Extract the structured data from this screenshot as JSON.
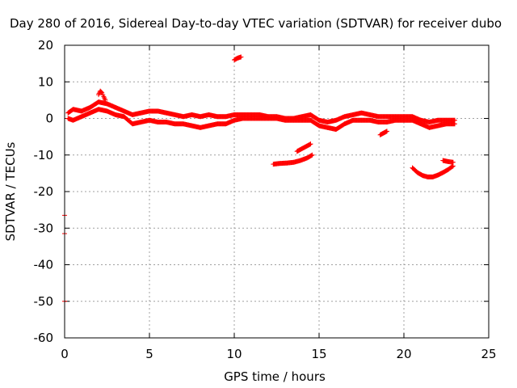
{
  "chart_data": {
    "type": "scatter",
    "title": "Day 280 of 2016, Sidereal Day-to-day VTEC variation (SDTVAR) for receiver dubo",
    "xlabel": "GPS time / hours",
    "ylabel": "SDTVAR / TECUs",
    "xlim": [
      0,
      25
    ],
    "ylim": [
      -60,
      20
    ],
    "xticks": [
      0,
      5,
      10,
      15,
      20,
      25
    ],
    "yticks": [
      -60,
      -50,
      -40,
      -30,
      -20,
      -10,
      0,
      10,
      20
    ],
    "grid": true,
    "grid_style": "dotted",
    "series": [
      {
        "name": "SDTVAR",
        "color": "#ff0000",
        "marker": "plus",
        "segments": [
          {
            "name": "main-band-upper",
            "x": [
              0.2,
              0.5,
              1.0,
              1.5,
              2.0,
              2.5,
              3.0,
              3.5,
              4.0,
              4.5,
              5.0,
              5.5,
              6.0,
              6.5,
              7.0,
              7.5,
              8.0,
              8.5,
              9.0,
              9.5,
              10.0,
              10.5,
              11.0,
              11.5,
              12.0,
              12.5,
              13.0,
              13.5,
              14.0,
              14.5,
              15.0,
              15.5,
              16.0,
              16.5,
              17.0,
              17.5,
              18.0,
              18.5,
              19.0,
              19.5,
              20.0,
              20.5,
              21.0,
              21.5,
              22.0,
              22.5,
              23.0
            ],
            "y": [
              1.5,
              2.5,
              2.0,
              3.0,
              4.5,
              4.0,
              3.0,
              2.0,
              1.0,
              1.5,
              2.0,
              2.0,
              1.5,
              1.0,
              0.5,
              1.0,
              0.5,
              1.0,
              0.5,
              0.5,
              1.0,
              1.0,
              1.0,
              1.0,
              0.5,
              0.5,
              0.0,
              0.0,
              0.5,
              1.0,
              -0.5,
              -1.0,
              -0.5,
              0.5,
              1.0,
              1.5,
              1.0,
              0.5,
              0.5,
              0.5,
              0.5,
              0.5,
              -0.5,
              -1.0,
              -0.5,
              -0.5,
              -0.5
            ]
          },
          {
            "name": "main-band-lower",
            "x": [
              0.2,
              0.5,
              1.0,
              1.5,
              2.0,
              2.5,
              3.0,
              3.5,
              4.0,
              4.5,
              5.0,
              5.5,
              6.0,
              6.5,
              7.0,
              7.5,
              8.0,
              8.5,
              9.0,
              9.5,
              10.0,
              10.5,
              11.0,
              11.5,
              12.0,
              12.5,
              13.0,
              13.5,
              14.0,
              14.5,
              15.0,
              15.5,
              16.0,
              16.5,
              17.0,
              17.5,
              18.0,
              18.5,
              19.0,
              19.5,
              20.0,
              20.5,
              21.0,
              21.5,
              22.0,
              22.5,
              23.0
            ],
            "y": [
              0.0,
              -0.5,
              0.5,
              1.5,
              2.5,
              2.0,
              1.0,
              0.5,
              -1.5,
              -1.0,
              -0.5,
              -1.0,
              -1.0,
              -1.5,
              -1.5,
              -2.0,
              -2.5,
              -2.0,
              -1.5,
              -1.5,
              -0.5,
              0.0,
              0.0,
              0.0,
              0.0,
              0.0,
              -0.5,
              -0.5,
              -0.5,
              -0.5,
              -2.0,
              -2.5,
              -3.0,
              -1.5,
              -0.5,
              -0.5,
              -0.5,
              -1.0,
              -1.0,
              -0.5,
              -0.5,
              -0.5,
              -1.5,
              -2.5,
              -2.0,
              -1.5,
              -1.5
            ]
          },
          {
            "name": "spike-2h",
            "x": [
              2.0,
              2.1,
              2.2,
              2.3,
              2.4
            ],
            "y": [
              6.5,
              7.5,
              7.0,
              6.0,
              5.0
            ]
          },
          {
            "name": "isolated-10h",
            "x": [
              10.0,
              10.2,
              10.4
            ],
            "y": [
              16.0,
              16.5,
              16.8
            ]
          },
          {
            "name": "arc-13h",
            "x": [
              12.3,
              12.7,
              13.1,
              13.5,
              13.9,
              14.3,
              14.6
            ],
            "y": [
              -12.5,
              -12.3,
              -12.2,
              -12.0,
              -11.5,
              -10.8,
              -10.0
            ]
          },
          {
            "name": "arc-14h",
            "x": [
              13.7,
              13.9,
              14.1,
              14.3,
              14.5
            ],
            "y": [
              -9.0,
              -8.5,
              -8.0,
              -7.5,
              -7.0
            ]
          },
          {
            "name": "dip-18h",
            "x": [
              18.6,
              18.8,
              19.0
            ],
            "y": [
              -4.5,
              -4.0,
              -3.5
            ]
          },
          {
            "name": "arc-21h",
            "x": [
              20.5,
              20.8,
              21.1,
              21.4,
              21.7,
              22.0,
              22.3,
              22.6,
              22.9
            ],
            "y": [
              -13.5,
              -14.8,
              -15.6,
              -16.0,
              -16.0,
              -15.5,
              -14.8,
              -14.0,
              -13.0
            ]
          },
          {
            "name": "short-22h",
            "x": [
              22.3,
              22.6,
              22.9
            ],
            "y": [
              -11.5,
              -11.8,
              -12.0
            ]
          },
          {
            "name": "outliers-0h",
            "x": [
              0.0,
              0.0,
              0.0
            ],
            "y": [
              -26.5,
              -31.5,
              -50.0
            ]
          }
        ]
      }
    ]
  }
}
